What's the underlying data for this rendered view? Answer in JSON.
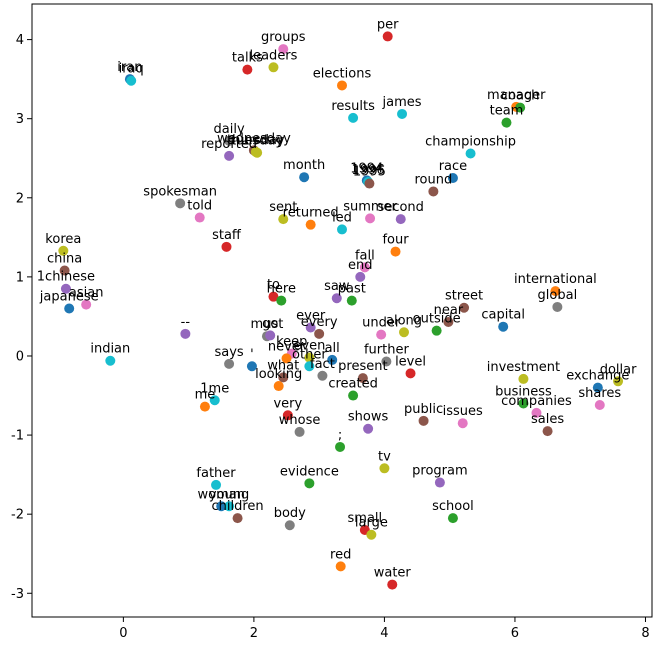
{
  "chart_data": {
    "type": "scatter",
    "title": "",
    "xlabel": "",
    "ylabel": "",
    "xlim": [
      -1.4,
      8.1
    ],
    "ylim": [
      -3.3,
      4.45
    ],
    "xticks": [
      0,
      2,
      4,
      6,
      8
    ],
    "yticks": [
      -3,
      -2,
      -1,
      0,
      1,
      2,
      3,
      4
    ],
    "grid": false,
    "legend": "none",
    "palette": [
      "#1f77b4",
      "#ff7f0e",
      "#2ca02c",
      "#d62728",
      "#9467bd",
      "#8c564b",
      "#e377c2",
      "#7f7f7f",
      "#bcbd22",
      "#17becf"
    ],
    "points": [
      {
        "label": "per",
        "x": 4.05,
        "y": 4.04,
        "color": "#d62728"
      },
      {
        "label": "groups",
        "x": 2.45,
        "y": 3.88,
        "color": "#e377c2"
      },
      {
        "label": "leaders",
        "x": 2.3,
        "y": 3.65,
        "color": "#bcbd22"
      },
      {
        "label": "talks",
        "x": 1.9,
        "y": 3.62,
        "color": "#d62728"
      },
      {
        "label": "elections",
        "x": 3.35,
        "y": 3.42,
        "color": "#ff7f0e"
      },
      {
        "label": "iran",
        "x": 0.1,
        "y": 3.5,
        "color": "#1f77b4"
      },
      {
        "label": "iraq",
        "x": 0.12,
        "y": 3.48,
        "color": "#17becf"
      },
      {
        "label": "results",
        "x": 3.52,
        "y": 3.01,
        "color": "#17becf"
      },
      {
        "label": "james",
        "x": 4.27,
        "y": 3.06,
        "color": "#17becf"
      },
      {
        "label": "manager",
        "x": 6.02,
        "y": 3.15,
        "color": "#ff7f0e"
      },
      {
        "label": "coach",
        "x": 6.08,
        "y": 3.14,
        "color": "#2ca02c"
      },
      {
        "label": "team",
        "x": 5.87,
        "y": 2.95,
        "color": "#2ca02c"
      },
      {
        "label": "daily",
        "x": 1.62,
        "y": 2.72,
        "color": "#7f7f7f"
      },
      {
        "label": "wednesday",
        "x": 2.0,
        "y": 2.6,
        "color": "#8c564b"
      },
      {
        "label": "thursday",
        "x": 2.03,
        "y": 2.58,
        "color": "#bcbd22"
      },
      {
        "label": "tuesday",
        "x": 2.05,
        "y": 2.57,
        "color": "#bcbd22"
      },
      {
        "label": "reported",
        "x": 1.62,
        "y": 2.53,
        "color": "#9467bd"
      },
      {
        "label": "championship",
        "x": 5.32,
        "y": 2.56,
        "color": "#17becf"
      },
      {
        "label": "month",
        "x": 2.77,
        "y": 2.26,
        "color": "#1f77b4"
      },
      {
        "label": "race",
        "x": 5.05,
        "y": 2.25,
        "color": "#1f77b4"
      },
      {
        "label": "1994",
        "x": 3.73,
        "y": 2.22,
        "color": "#1f77b4"
      },
      {
        "label": "1996",
        "x": 3.75,
        "y": 2.2,
        "color": "#17becf"
      },
      {
        "label": "1995",
        "x": 3.77,
        "y": 2.18,
        "color": "#8c564b"
      },
      {
        "label": "round",
        "x": 4.75,
        "y": 2.08,
        "color": "#8c564b"
      },
      {
        "label": "spokesman",
        "x": 0.87,
        "y": 1.93,
        "color": "#7f7f7f"
      },
      {
        "label": "told",
        "x": 1.17,
        "y": 1.75,
        "color": "#e377c2"
      },
      {
        "label": "sent",
        "x": 2.45,
        "y": 1.73,
        "color": "#bcbd22"
      },
      {
        "label": "summer",
        "x": 3.78,
        "y": 1.74,
        "color": "#e377c2"
      },
      {
        "label": "second",
        "x": 4.25,
        "y": 1.73,
        "color": "#9467bd"
      },
      {
        "label": "returned",
        "x": 2.87,
        "y": 1.66,
        "color": "#ff7f0e"
      },
      {
        "label": "led",
        "x": 3.35,
        "y": 1.6,
        "color": "#17becf"
      },
      {
        "label": "staff",
        "x": 1.58,
        "y": 1.38,
        "color": "#d62728"
      },
      {
        "label": "four",
        "x": 4.17,
        "y": 1.32,
        "color": "#ff7f0e"
      },
      {
        "label": "korea",
        "x": -0.92,
        "y": 1.33,
        "color": "#bcbd22"
      },
      {
        "label": "fall",
        "x": 3.7,
        "y": 1.12,
        "color": "#e377c2"
      },
      {
        "label": "end",
        "x": 3.63,
        "y": 1.0,
        "color": "#9467bd"
      },
      {
        "label": "china",
        "x": -0.9,
        "y": 1.08,
        "color": "#8c564b"
      },
      {
        "label": "1chinese",
        "x": -0.88,
        "y": 0.85,
        "color": "#9467bd"
      },
      {
        "label": "asian",
        "x": -0.57,
        "y": 0.65,
        "color": "#e377c2"
      },
      {
        "label": "japanese",
        "x": -0.83,
        "y": 0.6,
        "color": "#1f77b4"
      },
      {
        "label": "international",
        "x": 6.62,
        "y": 0.82,
        "color": "#ff7f0e"
      },
      {
        "label": "global",
        "x": 6.65,
        "y": 0.62,
        "color": "#7f7f7f"
      },
      {
        "label": "to",
        "x": 2.3,
        "y": 0.75,
        "color": "#d62728"
      },
      {
        "label": "here",
        "x": 2.42,
        "y": 0.7,
        "color": "#2ca02c"
      },
      {
        "label": "saw",
        "x": 3.27,
        "y": 0.73,
        "color": "#9467bd"
      },
      {
        "label": "past",
        "x": 3.5,
        "y": 0.7,
        "color": "#2ca02c"
      },
      {
        "label": "street",
        "x": 5.22,
        "y": 0.61,
        "color": "#8c564b"
      },
      {
        "label": "near",
        "x": 4.98,
        "y": 0.43,
        "color": "#8c564b"
      },
      {
        "label": "capital",
        "x": 5.82,
        "y": 0.37,
        "color": "#1f77b4"
      },
      {
        "label": "along",
        "x": 4.3,
        "y": 0.3,
        "color": "#bcbd22"
      },
      {
        "label": "outside",
        "x": 4.8,
        "y": 0.32,
        "color": "#2ca02c"
      },
      {
        "label": "under",
        "x": 3.95,
        "y": 0.27,
        "color": "#e377c2"
      },
      {
        "label": "ever",
        "x": 2.87,
        "y": 0.36,
        "color": "#9467bd"
      },
      {
        "label": "every",
        "x": 3.0,
        "y": 0.28,
        "color": "#8c564b"
      },
      {
        "label": "--",
        "x": 0.95,
        "y": 0.28,
        "color": "#9467bd"
      },
      {
        "label": "must",
        "x": 2.2,
        "y": 0.25,
        "color": "#7f7f7f"
      },
      {
        "label": "go",
        "x": 2.25,
        "y": 0.26,
        "color": "#9467bd"
      },
      {
        "label": "keep",
        "x": 2.58,
        "y": 0.03,
        "color": "#e377c2"
      },
      {
        "label": "even",
        "x": 2.85,
        "y": -0.02,
        "color": "#bcbd22"
      },
      {
        "label": "all",
        "x": 3.2,
        "y": -0.05,
        "color": "#1f77b4"
      },
      {
        "label": "never",
        "x": 2.5,
        "y": -0.03,
        "color": "#ff7f0e"
      },
      {
        "label": "further",
        "x": 4.03,
        "y": -0.07,
        "color": "#7f7f7f"
      },
      {
        "label": "says",
        "x": 1.62,
        "y": -0.1,
        "color": "#7f7f7f"
      },
      {
        "label": "'",
        "x": 1.97,
        "y": -0.13,
        "color": "#1f77b4"
      },
      {
        "label": "other",
        "x": 2.85,
        "y": -0.13,
        "color": "#17becf"
      },
      {
        "label": "level",
        "x": 4.4,
        "y": -0.22,
        "color": "#d62728"
      },
      {
        "label": "indian",
        "x": -0.2,
        "y": -0.06,
        "color": "#17becf"
      },
      {
        "label": "fact",
        "x": 3.05,
        "y": -0.25,
        "color": "#7f7f7f"
      },
      {
        "label": "present",
        "x": 3.67,
        "y": -0.28,
        "color": "#8c564b"
      },
      {
        "label": "what",
        "x": 2.45,
        "y": -0.27,
        "color": "#8c564b"
      },
      {
        "label": "looking",
        "x": 2.38,
        "y": -0.38,
        "color": "#ff7f0e"
      },
      {
        "label": "created",
        "x": 3.52,
        "y": -0.5,
        "color": "#2ca02c"
      },
      {
        "label": "investment",
        "x": 6.13,
        "y": -0.29,
        "color": "#bcbd22"
      },
      {
        "label": "exchange",
        "x": 7.27,
        "y": -0.4,
        "color": "#1f77b4"
      },
      {
        "label": "dollar",
        "x": 7.58,
        "y": -0.32,
        "color": "#bcbd22"
      },
      {
        "label": "business",
        "x": 6.13,
        "y": -0.6,
        "color": "#2ca02c"
      },
      {
        "label": "companies",
        "x": 6.33,
        "y": -0.72,
        "color": "#e377c2"
      },
      {
        "label": "shares",
        "x": 7.3,
        "y": -0.62,
        "color": "#e377c2"
      },
      {
        "label": "sales",
        "x": 6.5,
        "y": -0.95,
        "color": "#8c564b"
      },
      {
        "label": "me",
        "x": 1.25,
        "y": -0.64,
        "color": "#ff7f0e"
      },
      {
        "label": "1me",
        "x": 1.4,
        "y": -0.56,
        "color": "#17becf"
      },
      {
        "label": "very",
        "x": 2.52,
        "y": -0.75,
        "color": "#d62728"
      },
      {
        "label": "public",
        "x": 4.6,
        "y": -0.82,
        "color": "#8c564b"
      },
      {
        "label": "issues",
        "x": 5.2,
        "y": -0.85,
        "color": "#e377c2"
      },
      {
        "label": "whose",
        "x": 2.7,
        "y": -0.96,
        "color": "#7f7f7f"
      },
      {
        "label": "shows",
        "x": 3.75,
        "y": -0.92,
        "color": "#9467bd"
      },
      {
        "label": ";",
        "x": 3.32,
        "y": -1.15,
        "color": "#2ca02c"
      },
      {
        "label": "tv",
        "x": 4.0,
        "y": -1.42,
        "color": "#bcbd22"
      },
      {
        "label": "program",
        "x": 4.85,
        "y": -1.6,
        "color": "#9467bd"
      },
      {
        "label": "father",
        "x": 1.42,
        "y": -1.63,
        "color": "#17becf"
      },
      {
        "label": "evidence",
        "x": 2.85,
        "y": -1.61,
        "color": "#2ca02c"
      },
      {
        "label": "woman",
        "x": 1.5,
        "y": -1.9,
        "color": "#1f77b4"
      },
      {
        "label": "young",
        "x": 1.62,
        "y": -1.9,
        "color": "#17becf"
      },
      {
        "label": "children",
        "x": 1.75,
        "y": -2.05,
        "color": "#8c564b"
      },
      {
        "label": "body",
        "x": 2.55,
        "y": -2.14,
        "color": "#7f7f7f"
      },
      {
        "label": "school",
        "x": 5.05,
        "y": -2.05,
        "color": "#2ca02c"
      },
      {
        "label": "small",
        "x": 3.7,
        "y": -2.2,
        "color": "#d62728"
      },
      {
        "label": "large",
        "x": 3.8,
        "y": -2.26,
        "color": "#bcbd22"
      },
      {
        "label": "red",
        "x": 3.33,
        "y": -2.66,
        "color": "#ff7f0e"
      },
      {
        "label": "water",
        "x": 4.12,
        "y": -2.89,
        "color": "#d62728"
      }
    ]
  }
}
